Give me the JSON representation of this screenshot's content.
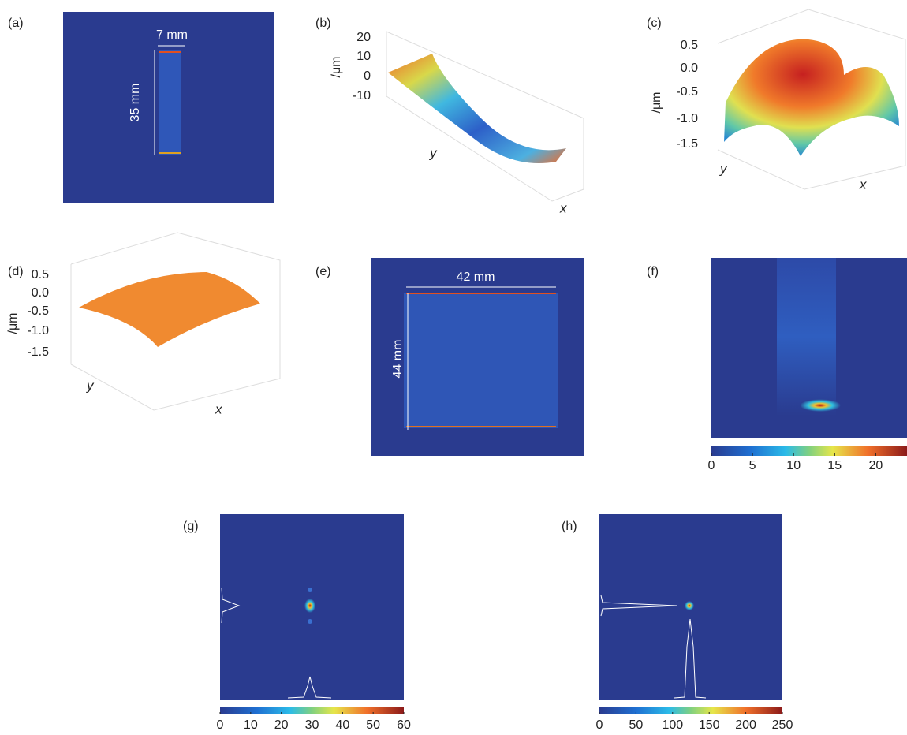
{
  "panels": [
    {
      "label": "(a)",
      "annotations": [
        "7 mm",
        "35 mm"
      ]
    },
    {
      "label": "(b)",
      "z_tick_labels": [
        "20",
        "10",
        "0",
        "-10"
      ],
      "z_label": "/μm",
      "x_label": "x",
      "y_label": "y"
    },
    {
      "label": "(c)",
      "z_tick_labels": [
        "0.5",
        "0.0",
        "-0.5",
        "-1.0",
        "-1.5"
      ],
      "z_label": "/μm",
      "x_label": "x",
      "y_label": "y"
    },
    {
      "label": "(d)",
      "z_tick_labels": [
        "0.5",
        "0.0",
        "-0.5",
        "-1.0",
        "-1.5"
      ],
      "z_label": "/μm",
      "x_label": "x",
      "y_label": "y"
    },
    {
      "label": "(e)",
      "annotations": [
        "42 mm",
        "44 mm"
      ]
    },
    {
      "label": "(f)",
      "colorbar": {
        "lim": [
          0,
          23.8
        ],
        "ticks": [
          0,
          5,
          10,
          15,
          20
        ]
      }
    },
    {
      "label": "(g)",
      "colorbar": {
        "lim": [
          0,
          60
        ],
        "ticks": [
          0,
          10,
          20,
          30,
          40,
          50,
          60
        ]
      }
    },
    {
      "label": "(h)",
      "colorbar": {
        "lim": [
          0,
          250
        ],
        "ticks": [
          0,
          50,
          100,
          150,
          200,
          250
        ]
      }
    }
  ]
}
